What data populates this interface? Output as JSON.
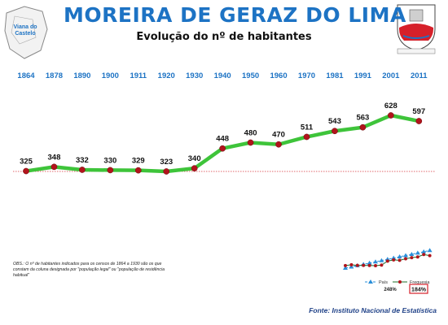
{
  "title": "MOREIRA DE GERAZ DO LIMA",
  "subtitle": "Evolução do nº de habitantes",
  "map_label": "Viana do Castelo",
  "obs_text": "OBS.: O nº de habitantes indicados para os censos de 1864 a 1930 são os que constam da coluna designada por \"população legal\" ou \"população de residência habitual\"",
  "source": "Fonte: Instituto Nacional de Estatística",
  "colors": {
    "title": "#1d73c4",
    "years": "#1d73c4",
    "line": "#3ec43a",
    "marker": "#b2141c",
    "reference_line": "#d9363e",
    "pais": "#2a8fd9",
    "freguesia": "#1d6e2a"
  },
  "chart_data": {
    "type": "line",
    "title": "Evolução do nº de habitantes",
    "categories": [
      "1864",
      "1878",
      "1890",
      "1900",
      "1911",
      "1920",
      "1930",
      "1940",
      "1950",
      "1960",
      "1970",
      "1981",
      "1991",
      "2001",
      "2011"
    ],
    "values": [
      325,
      348,
      332,
      330,
      329,
      323,
      340,
      448,
      480,
      470,
      511,
      543,
      563,
      628,
      597
    ],
    "marker": "circle",
    "grid": false,
    "inset": {
      "type": "line",
      "legend": [
        "País",
        "Freguesia"
      ],
      "legend_placement": "bottom",
      "growth_labels": [
        "248%",
        "184%"
      ]
    }
  }
}
